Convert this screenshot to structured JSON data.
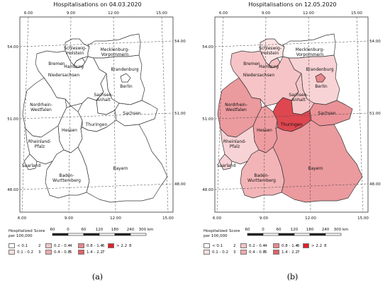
{
  "panels": [
    {
      "title": "Hospitalisations on 04.03.2020",
      "caption": "(a)",
      "state_colors": {
        "SH": "#ffffff",
        "MV": "#ffffff",
        "HH": "#ffffff",
        "HB": "#ffffff",
        "NI": "#ffffff",
        "BB": "#ffffff",
        "BE": "#ffffff",
        "ST": "#ffffff",
        "NW": "#ffffff",
        "HE": "#ffffff",
        "TH": "#ffffff",
        "SN": "#ffffff",
        "RP": "#ffffff",
        "SL": "#ffffff",
        "BW": "#ffffff",
        "BY": "#ffffff"
      }
    },
    {
      "title": "Hospitalisations on 12.05.2020",
      "caption": "(b)",
      "state_colors": {
        "SH": "#fde3e3",
        "MV": "#ffffff",
        "HH": "#f5c0c2",
        "HB": "#e8868a",
        "NI": "#f6c4c6",
        "BB": "#f8d3d5",
        "BE": "#e7878b",
        "ST": "#f6c6c8",
        "NW": "#eb9a9e",
        "HE": "#ee9ca0",
        "TH": "#de4750",
        "SN": "#ea9297",
        "RP": "#f8d3d5",
        "SL": "#f8d3d5",
        "BW": "#f2b4b7",
        "BY": "#eb9a9e"
      }
    }
  ],
  "state_labels": {
    "SH": "Schleswig-\nHolstein",
    "MV": "Mecklenburg-\nVorpommern",
    "HH": "Hamburg",
    "HB": "Bremen",
    "NI": "Niedersachsen",
    "BB": "Brandenburg",
    "BE": "Berlin",
    "ST": "Sachsen-\nAnhalt",
    "NW": "Nordrhein-\nWestfalen",
    "HE": "Hessen",
    "TH": "Thuringen",
    "SN": "Sachsen",
    "RP": "Rheinland-\nPfalz",
    "SL": "Saarland",
    "BW": "Baden-\nWurttemberg",
    "BY": "Bayern"
  },
  "coords": {
    "top": [
      "6.00",
      "9.00",
      "12.00",
      "15.00"
    ],
    "bottom": [
      "6.00",
      "9.00",
      "12.00",
      "15.00"
    ],
    "left": [
      "54.00",
      "51.00",
      "48.00"
    ],
    "right": [
      "54.00",
      "51.00",
      "48.00"
    ]
  },
  "legend": {
    "head": "Hospitalized\nper 100,000",
    "score_head": "Score",
    "items": [
      {
        "range": "< 0.1",
        "score": "2",
        "color": "#ffffff"
      },
      {
        "range": "0.1 - 0.2",
        "score": "3",
        "color": "#fbe0e0"
      },
      {
        "range": "0.2 - 0.4",
        "score": "4",
        "color": "#f6c4c6"
      },
      {
        "range": "0.4 - 0.8",
        "score": "5",
        "color": "#f0a8ab"
      },
      {
        "range": "0.8 - 1.4",
        "score": "6",
        "color": "#e9868b"
      },
      {
        "range": "1.4 - 2.2",
        "score": "7",
        "color": "#e36066"
      },
      {
        "range": "> 2.2",
        "score": "8",
        "color": "#e0202a"
      }
    ]
  },
  "scalebar": {
    "labels": [
      "60",
      "0",
      "60",
      "120",
      "180",
      "240",
      "300 km"
    ]
  }
}
